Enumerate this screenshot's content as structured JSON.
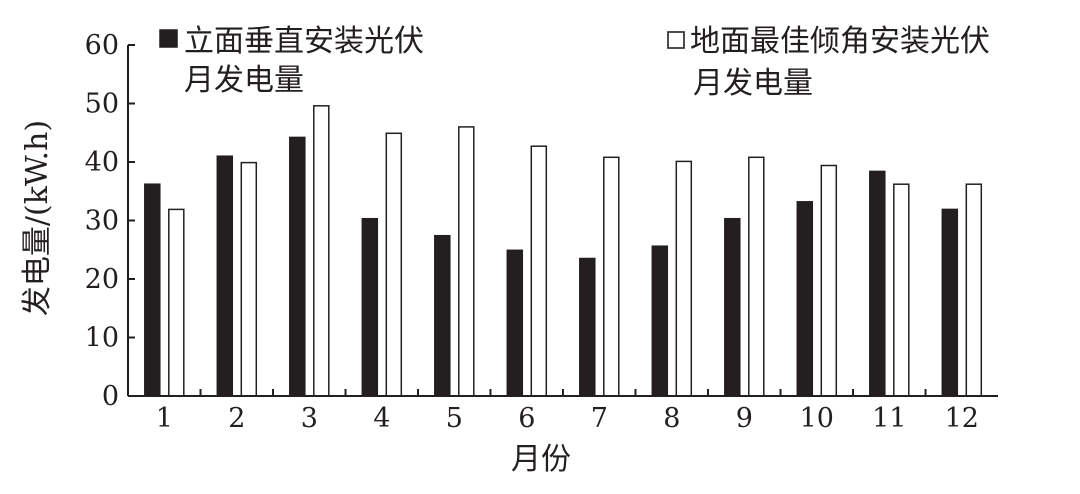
{
  "chart_data": {
    "type": "bar",
    "categories": [
      "1",
      "2",
      "3",
      "4",
      "5",
      "6",
      "7",
      "8",
      "9",
      "10",
      "11",
      "12"
    ],
    "series": [
      {
        "name_line1": "立面垂直安装光伏",
        "name_line2": "月发电量",
        "values": [
          36.2,
          41.0,
          44.2,
          30.3,
          27.4,
          24.9,
          23.5,
          25.6,
          30.3,
          33.2,
          38.4,
          31.9
        ],
        "color": "#231f20"
      },
      {
        "name_line1": "地面最佳倾角安装光伏",
        "name_line2": "月发电量",
        "values": [
          31.9,
          39.9,
          49.6,
          44.9,
          46.0,
          42.7,
          40.8,
          40.1,
          40.8,
          39.4,
          36.2,
          36.2
        ],
        "color": "#ffffff"
      }
    ],
    "xlabel": "月份",
    "ylabel": "发电量/(kW.h)",
    "ylim": [
      0,
      60
    ],
    "yticks": [
      "0",
      "10",
      "20",
      "30",
      "40",
      "50",
      "60"
    ],
    "grid": false,
    "legend": "top"
  },
  "colors": {
    "ink": "#231f20",
    "background": "#ffffff"
  }
}
